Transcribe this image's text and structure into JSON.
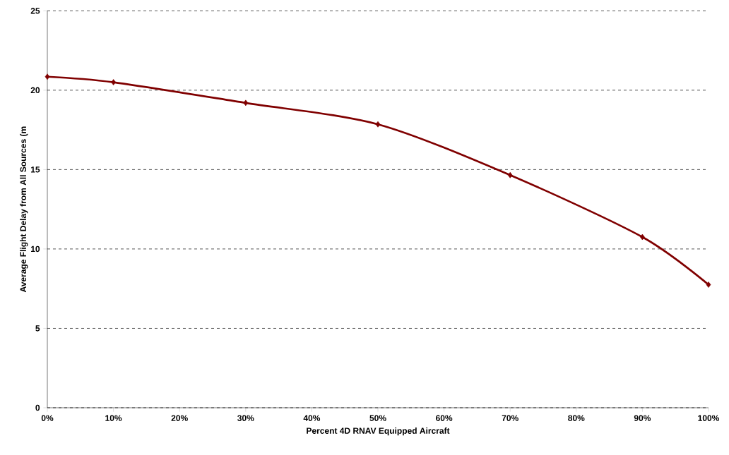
{
  "chart_data": {
    "type": "line",
    "xlabel": "Percent 4D RNAV Equipped Aircraft",
    "ylabel": "Average Flight Delay from All Sources (m",
    "x": [
      0,
      10,
      30,
      50,
      70,
      90,
      100
    ],
    "series": [
      {
        "color": "#800000",
        "values": [
          20.85,
          20.5,
          19.2,
          17.85,
          14.65,
          10.75,
          7.75
        ]
      }
    ],
    "xlim": [
      0,
      100
    ],
    "xticks": [
      {
        "value": 0,
        "label": "0%"
      },
      {
        "value": 10,
        "label": "10%"
      },
      {
        "value": 20,
        "label": "20%"
      },
      {
        "value": 30,
        "label": "30%"
      },
      {
        "value": 40,
        "label": "40%"
      },
      {
        "value": 50,
        "label": "50%"
      },
      {
        "value": 60,
        "label": "60%"
      },
      {
        "value": 70,
        "label": "70%"
      },
      {
        "value": 80,
        "label": "80%"
      },
      {
        "value": 90,
        "label": "90%"
      },
      {
        "value": 100,
        "label": "100%"
      }
    ],
    "ylim": [
      0,
      25
    ],
    "yticks": [
      0,
      5,
      10,
      15,
      20,
      25
    ],
    "grid": "y",
    "marker": "diamond",
    "line_style": "solid"
  }
}
